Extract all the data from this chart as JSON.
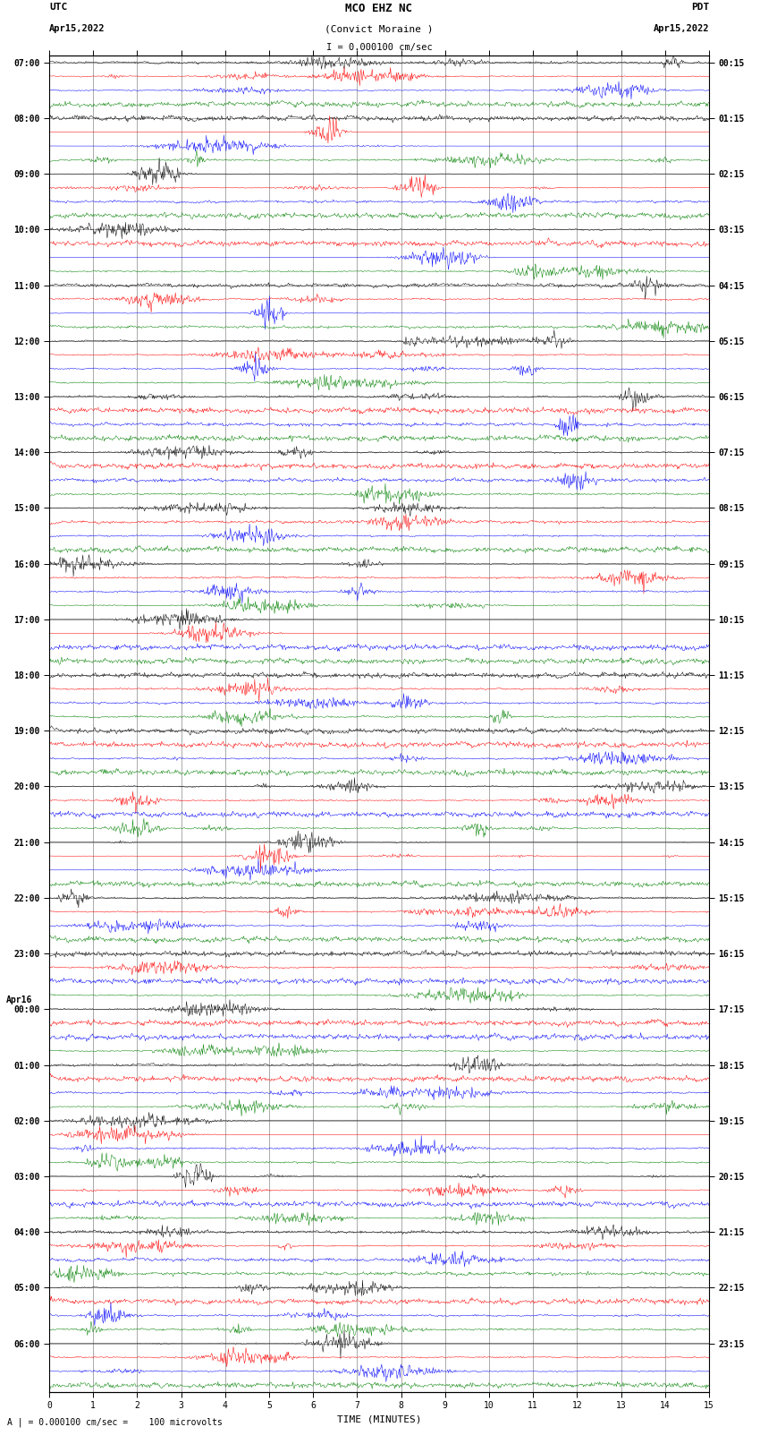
{
  "title_line1": "MCO EHZ NC",
  "title_line2": "(Convict Moraine )",
  "scale_text": "I = 0.000100 cm/sec",
  "left_header": "UTC",
  "left_date": "Apr15,2022",
  "right_header": "PDT",
  "right_date": "Apr15,2022",
  "hour_labels_left": [
    "07:00",
    "08:00",
    "09:00",
    "10:00",
    "11:00",
    "12:00",
    "13:00",
    "14:00",
    "15:00",
    "16:00",
    "17:00",
    "18:00",
    "19:00",
    "20:00",
    "21:00",
    "22:00",
    "23:00",
    "00:00",
    "01:00",
    "02:00",
    "03:00",
    "04:00",
    "05:00",
    "06:00"
  ],
  "hour_labels_right": [
    "00:15",
    "01:15",
    "02:15",
    "03:15",
    "04:15",
    "05:15",
    "06:15",
    "07:15",
    "08:15",
    "09:15",
    "10:15",
    "11:15",
    "12:15",
    "13:15",
    "14:15",
    "15:15",
    "16:15",
    "17:15",
    "18:15",
    "19:15",
    "20:15",
    "21:15",
    "22:15",
    "23:15"
  ],
  "apr16_group": 17,
  "trace_colors": [
    "black",
    "red",
    "blue",
    "green"
  ],
  "n_traces": 96,
  "n_groups": 24,
  "n_minutes": 15,
  "samples_per_trace": 900,
  "xlabel": "TIME (MINUTES)",
  "footer_text": "A | = 0.000100 cm/sec =    100 microvolts",
  "bg_color": "white",
  "grid_color": "#888888",
  "trace_amplitude": 0.42,
  "font_size_title": 9,
  "font_size_label": 8,
  "font_size_tick": 7,
  "font_size_footer": 7
}
